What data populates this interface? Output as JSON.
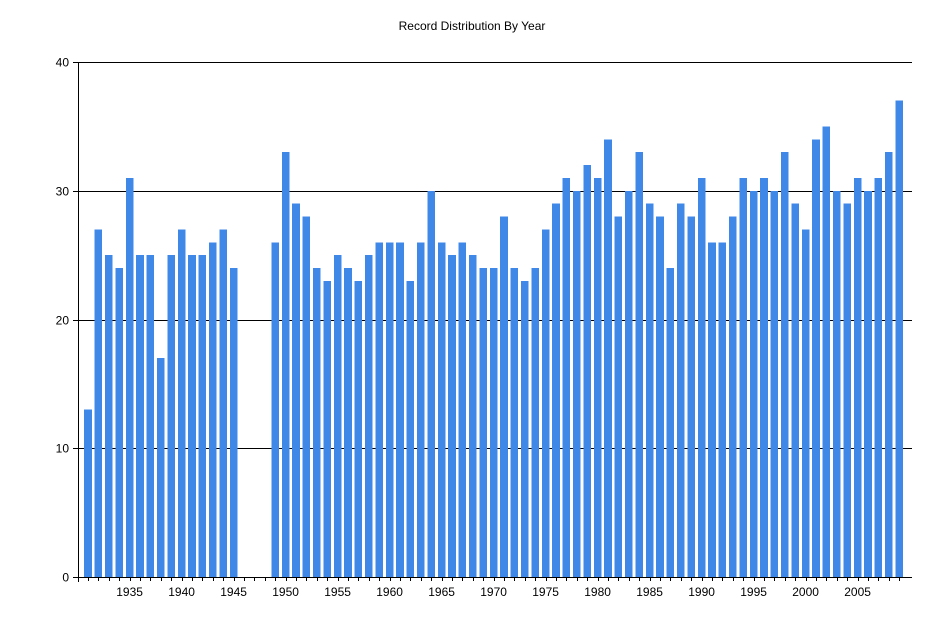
{
  "chart_data": {
    "type": "bar",
    "title": "Record Distribution By Year",
    "xlabel": "",
    "ylabel": "",
    "ylim": [
      0,
      40
    ],
    "y_ticks": [
      0,
      10,
      20,
      30,
      40
    ],
    "x_tick_labels": [
      "1935",
      "1940",
      "1945",
      "1950",
      "1955",
      "1960",
      "1965",
      "1970",
      "1975",
      "1980",
      "1985",
      "1990",
      "1995",
      "2000",
      "2005"
    ],
    "grid": "horizontal",
    "bar_color": "#4088E8",
    "categories": [
      1931,
      1932,
      1933,
      1934,
      1935,
      1936,
      1937,
      1938,
      1939,
      1940,
      1941,
      1942,
      1943,
      1944,
      1945,
      1946,
      1947,
      1948,
      1949,
      1950,
      1951,
      1952,
      1953,
      1954,
      1955,
      1956,
      1957,
      1958,
      1959,
      1960,
      1961,
      1962,
      1963,
      1964,
      1965,
      1966,
      1967,
      1968,
      1969,
      1970,
      1971,
      1972,
      1973,
      1974,
      1975,
      1976,
      1977,
      1978,
      1979,
      1980,
      1981,
      1982,
      1983,
      1984,
      1985,
      1986,
      1987,
      1988,
      1989,
      1990,
      1991,
      1992,
      1993,
      1994,
      1995,
      1996,
      1997,
      1998,
      1999,
      2000,
      2001,
      2002,
      2003,
      2004,
      2005,
      2006,
      2007,
      2008,
      2009
    ],
    "values": [
      13,
      27,
      25,
      24,
      31,
      25,
      25,
      17,
      25,
      27,
      25,
      25,
      26,
      27,
      24,
      0,
      0,
      0,
      26,
      33,
      29,
      28,
      24,
      23,
      25,
      24,
      23,
      25,
      26,
      26,
      26,
      23,
      26,
      30,
      26,
      25,
      26,
      25,
      24,
      24,
      28,
      24,
      23,
      24,
      27,
      29,
      31,
      30,
      32,
      31,
      34,
      28,
      30,
      33,
      29,
      28,
      24,
      29,
      28,
      31,
      26,
      26,
      28,
      31,
      30,
      31,
      30,
      33,
      29,
      27,
      34,
      35,
      30,
      29,
      31,
      30,
      31,
      33,
      37
    ]
  }
}
